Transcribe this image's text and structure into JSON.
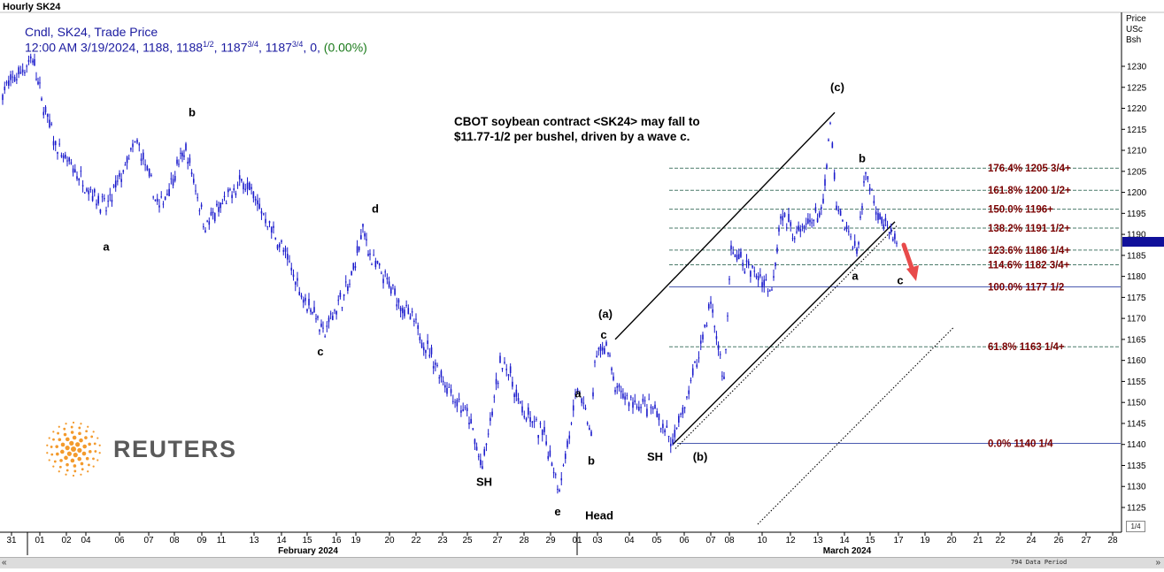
{
  "header": {
    "title": "Hourly SK24"
  },
  "legend": {
    "line1": "Cndl, SK24, Trade Price",
    "line2_prefix": "12:00 AM 3/19/2024, 1188, 1188",
    "frac_open": "1/2",
    "sep1": ", 1187",
    "frac_low": "3/4",
    "sep2": ", 1187",
    "frac_close": "3/4",
    "sep3": ", 0, ",
    "change": "(0.00%)"
  },
  "annotation": {
    "line1": "CBOT soybean contract <SK24> may fall to",
    "line2": "$11.77-1/2  per bushel, driven by a wave c."
  },
  "price_axis_header": [
    "Price",
    "USc",
    "Bsh"
  ],
  "logo": {
    "text": "REUTERS"
  },
  "scrollbar": {
    "left": "«",
    "right": "»",
    "data_period": "794 Data Period"
  },
  "fraction_label": "1/4",
  "colors": {
    "candles": "#1a1acc",
    "fib_lines": "#4a7a6a",
    "fib_labels": "#7a0000",
    "baseline": "#4a5ab0",
    "arrow": "#e84a4a",
    "axis_text": "#000000"
  },
  "chart_data": {
    "type": "candlestick",
    "ylim": [
      1121,
      1238
    ],
    "yticks": [
      1125,
      1130,
      1135,
      1140,
      1145,
      1150,
      1155,
      1160,
      1165,
      1170,
      1175,
      1180,
      1185,
      1190,
      1195,
      1200,
      1205,
      1210,
      1215,
      1220,
      1225,
      1230
    ],
    "x_day_labels": [
      "31",
      "01",
      "02",
      "04",
      "06",
      "07",
      "08",
      "09",
      "11",
      "13",
      "14",
      "15",
      "16",
      "19",
      "20",
      "22",
      "23",
      "25",
      "27",
      "28",
      "29",
      "01",
      "03",
      "04",
      "05",
      "06",
      "07",
      "08",
      "10",
      "12",
      "13",
      "14",
      "15",
      "17",
      "19",
      "20",
      "21",
      "22",
      "24",
      "26",
      "27",
      "28",
      "31"
    ],
    "x_month_labels": [
      "February 2024",
      "March 2024"
    ],
    "last_price": 1187.75,
    "price_path": [
      {
        "date": "2024-01-31",
        "price": 1224
      },
      {
        "date": "2024-02-01",
        "price": 1232
      },
      {
        "date": "2024-02-01",
        "price": 1222
      },
      {
        "date": "2024-02-02",
        "price": 1210
      },
      {
        "date": "2024-02-04",
        "price": 1196
      },
      {
        "date": "2024-02-06",
        "price": 1210
      },
      {
        "date": "2024-02-06",
        "price": 1212
      },
      {
        "date": "2024-02-07",
        "price": 1196
      },
      {
        "date": "2024-02-08",
        "price": 1206
      },
      {
        "date": "2024-02-08",
        "price": 1210
      },
      {
        "date": "2024-02-09",
        "price": 1192
      },
      {
        "date": "2024-02-11",
        "price": 1203
      },
      {
        "date": "2024-02-13",
        "price": 1194
      },
      {
        "date": "2024-02-14",
        "price": 1187
      },
      {
        "date": "2024-02-15",
        "price": 1174
      },
      {
        "date": "2024-02-15",
        "price": 1172
      },
      {
        "date": "2024-02-16",
        "price": 1166
      },
      {
        "date": "2024-02-16",
        "price": 1172
      },
      {
        "date": "2024-02-19",
        "price": 1178
      },
      {
        "date": "2024-02-20",
        "price": 1191
      },
      {
        "date": "2024-02-20",
        "price": 1184
      },
      {
        "date": "2024-02-22",
        "price": 1168
      },
      {
        "date": "2024-02-23",
        "price": 1154
      },
      {
        "date": "2024-02-25",
        "price": 1146
      },
      {
        "date": "2024-02-25",
        "price": 1134
      },
      {
        "date": "2024-02-27",
        "price": 1159
      },
      {
        "date": "2024-02-27",
        "price": 1160
      },
      {
        "date": "2024-02-28",
        "price": 1148
      },
      {
        "date": "2024-02-29",
        "price": 1142
      },
      {
        "date": "2024-02-29",
        "price": 1130
      },
      {
        "date": "2024-03-01",
        "price": 1150
      },
      {
        "date": "2024-03-01",
        "price": 1153
      },
      {
        "date": "2024-03-03",
        "price": 1142
      },
      {
        "date": "2024-03-03",
        "price": 1160
      },
      {
        "date": "2024-03-04",
        "price": 1164
      },
      {
        "date": "2024-03-04",
        "price": 1153
      },
      {
        "date": "2024-03-05",
        "price": 1150
      },
      {
        "date": "2024-03-06",
        "price": 1148
      },
      {
        "date": "2024-03-06",
        "price": 1140
      },
      {
        "date": "2024-03-07",
        "price": 1158
      },
      {
        "date": "2024-03-08",
        "price": 1174
      },
      {
        "date": "2024-03-08",
        "price": 1155
      },
      {
        "date": "2024-03-10",
        "price": 1186
      },
      {
        "date": "2024-03-12",
        "price": 1177
      },
      {
        "date": "2024-03-12",
        "price": 1195
      },
      {
        "date": "2024-03-13",
        "price": 1190
      },
      {
        "date": "2024-03-14",
        "price": 1196
      },
      {
        "date": "2024-03-14",
        "price": 1217
      },
      {
        "date": "2024-03-15",
        "price": 1196
      },
      {
        "date": "2024-03-15",
        "price": 1186
      },
      {
        "date": "2024-03-17",
        "price": 1205
      },
      {
        "date": "2024-03-17",
        "price": 1195
      },
      {
        "date": "2024-03-19",
        "price": 1187.75
      }
    ],
    "fib_levels": [
      {
        "label": "176.4% 1205 3/4+",
        "value": 1205.75
      },
      {
        "label": "161.8% 1200 1/2+",
        "value": 1200.5
      },
      {
        "label": "150.0% 1196+",
        "value": 1196
      },
      {
        "label": "138.2% 1191 1/2+",
        "value": 1191.5
      },
      {
        "label": "123.6% 1186 1/4+",
        "value": 1186.25
      },
      {
        "label": "114.6% 1182 3/4+",
        "value": 1182.75
      },
      {
        "label": "100.0% 1177 1/2",
        "value": 1177.5
      },
      {
        "label": "61.8%  1163 1/4+",
        "value": 1163.25
      },
      {
        "label": "0.0%   1140 1/4",
        "value": 1140.25
      }
    ],
    "wave_labels": [
      {
        "text": "a",
        "date": "2024-02-04",
        "price": 1187
      },
      {
        "text": "b",
        "date": "2024-02-08",
        "price": 1219
      },
      {
        "text": "d",
        "date": "2024-02-20",
        "price": 1196
      },
      {
        "text": "c",
        "date": "2024-02-16",
        "price": 1162
      },
      {
        "text": "SH",
        "date": "2024-02-25",
        "price": 1131
      },
      {
        "text": "e",
        "date": "2024-02-29",
        "price": 1124
      },
      {
        "text": "Head",
        "date": "2024-03-03",
        "price": 1123
      },
      {
        "text": "a",
        "date": "2024-03-01",
        "price": 1152
      },
      {
        "text": "b",
        "date": "2024-03-03",
        "price": 1136
      },
      {
        "text": "c",
        "date": "2024-03-03",
        "price": 1166
      },
      {
        "text": "(a)",
        "date": "2024-03-03",
        "price": 1171
      },
      {
        "text": "SH",
        "date": "2024-03-06",
        "price": 1137
      },
      {
        "text": "(b)",
        "date": "2024-03-07",
        "price": 1137
      },
      {
        "text": "(c)",
        "date": "2024-03-14",
        "price": 1225
      },
      {
        "text": "b",
        "date": "2024-03-17",
        "price": 1208
      },
      {
        "text": "a",
        "date": "2024-03-15",
        "price": 1180
      },
      {
        "text": "c",
        "date": "2024-03-19",
        "price": 1179
      }
    ],
    "trend_lines": [
      {
        "style": "solid",
        "from": {
          "date": "2024-03-03",
          "price": 1165
        },
        "to": {
          "date": "2024-03-14",
          "price": 1219
        }
      },
      {
        "style": "solid",
        "from": {
          "date": "2024-03-06",
          "price": 1140
        },
        "to": {
          "date": "2024-03-17",
          "price": 1193
        }
      },
      {
        "style": "dotted",
        "from": {
          "date": "2024-03-06",
          "price": 1139
        },
        "to": {
          "date": "2024-03-17",
          "price": 1192
        }
      },
      {
        "style": "dotted",
        "from": {
          "date": "2024-03-12",
          "price": 1121
        },
        "to": {
          "date": "2024-03-21",
          "price": 1168
        }
      }
    ]
  }
}
